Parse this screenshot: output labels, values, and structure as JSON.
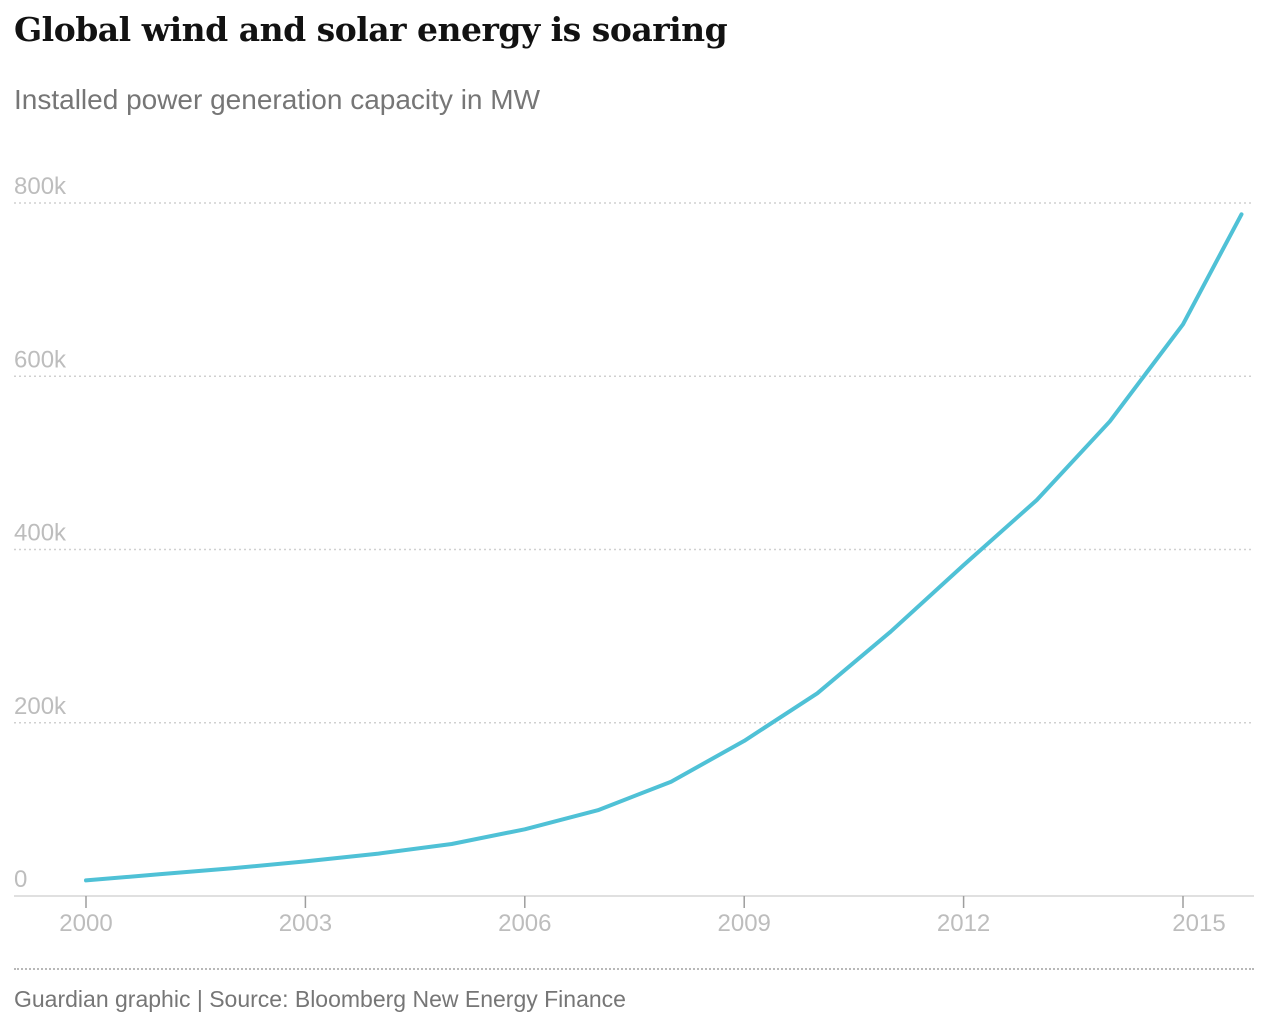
{
  "header": {
    "title": "Global wind and solar energy is soaring",
    "subtitle": "Installed power generation capacity in MW"
  },
  "footer": {
    "source": "Guardian graphic | Source: Bloomberg New Energy Finance"
  },
  "colors": {
    "line": "#4fc1d6",
    "gridline": "#d0d0d0",
    "tick_text": "#bdbdbd",
    "title": "#121212",
    "subtitle": "#767676"
  },
  "chart_data": {
    "type": "line",
    "title": "Global wind and solar energy is soaring",
    "subtitle": "Installed power generation capacity in MW",
    "xlabel": "",
    "ylabel": "",
    "x": [
      2000,
      2001,
      2002,
      2003,
      2004,
      2005,
      2006,
      2007,
      2008,
      2009,
      2010,
      2011,
      2012,
      2013,
      2014,
      2015,
      2015.8
    ],
    "series": [
      {
        "values": [
          18000,
          25000,
          32000,
          40000,
          49000,
          60000,
          77000,
          99000,
          132000,
          179000,
          234000,
          305000,
          382000,
          457000,
          548000,
          660000,
          787000
        ]
      }
    ],
    "xlim": [
      1999,
      2016
    ],
    "ylim": [
      0,
      800000
    ],
    "y_ticks": [
      0,
      200000,
      400000,
      600000,
      800000
    ],
    "y_tick_labels": [
      "0",
      "200k",
      "400k",
      "600k",
      "800k"
    ],
    "x_ticks": [
      2000,
      2003,
      2006,
      2009,
      2012,
      2015
    ],
    "x_tick_labels": [
      "2000",
      "2003",
      "2006",
      "2009",
      "2012",
      "2015"
    ],
    "grid": true,
    "legend": "none"
  }
}
